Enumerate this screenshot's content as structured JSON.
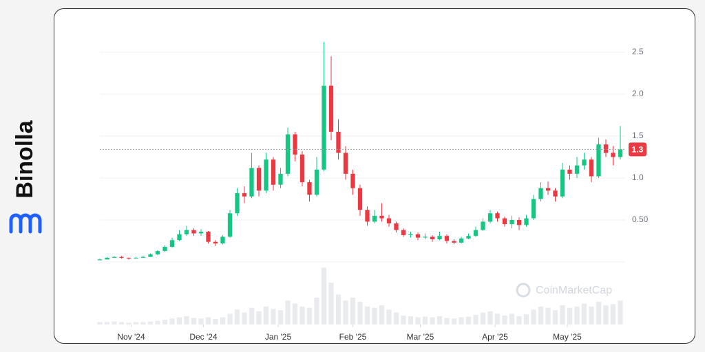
{
  "brand": "Binolla",
  "chart_data": {
    "type": "candlestick",
    "watermark": "CoinMarketCap",
    "up_color": "#16c784",
    "down_color": "#ea3943",
    "grid": true,
    "x": [
      0,
      3,
      6,
      9,
      12,
      15,
      18,
      21,
      24,
      27,
      30,
      33,
      36,
      39,
      42,
      45,
      48,
      51,
      54,
      57,
      60,
      63,
      66,
      69,
      72,
      75,
      78,
      81,
      84,
      87,
      90,
      93,
      96,
      99,
      102,
      105,
      108,
      111,
      114,
      117,
      120,
      123,
      126,
      129,
      132,
      135,
      138,
      141,
      144,
      147,
      150,
      153,
      156,
      159,
      162,
      165,
      168,
      171,
      174,
      177,
      180,
      183,
      186,
      189,
      192,
      195,
      198,
      201,
      204,
      207,
      210,
      213,
      216
    ],
    "open": [
      0.02,
      0.03,
      0.05,
      0.06,
      0.05,
      0.04,
      0.05,
      0.06,
      0.09,
      0.13,
      0.18,
      0.26,
      0.33,
      0.38,
      0.34,
      0.36,
      0.24,
      0.22,
      0.3,
      0.58,
      0.82,
      0.78,
      1.12,
      0.85,
      1.22,
      0.92,
      1.05,
      1.52,
      1.28,
      0.95,
      0.8,
      1.1,
      2.1,
      1.55,
      1.3,
      1.05,
      0.88,
      0.62,
      0.48,
      0.55,
      0.52,
      0.46,
      0.38,
      0.32,
      0.33,
      0.29,
      0.3,
      0.27,
      0.31,
      0.25,
      0.23,
      0.28,
      0.31,
      0.38,
      0.48,
      0.58,
      0.52,
      0.45,
      0.5,
      0.44,
      0.52,
      0.75,
      0.88,
      0.85,
      0.78,
      1.1,
      1.05,
      1.15,
      1.22,
      1.02,
      1.4,
      1.3,
      1.25
    ],
    "high": [
      0.04,
      0.06,
      0.07,
      0.07,
      0.05,
      0.06,
      0.07,
      0.1,
      0.14,
      0.2,
      0.29,
      0.38,
      0.43,
      0.4,
      0.39,
      0.37,
      0.26,
      0.32,
      0.62,
      0.88,
      0.9,
      1.3,
      1.15,
      1.3,
      1.25,
      1.12,
      1.6,
      1.55,
      1.32,
      0.98,
      1.25,
      2.62,
      2.45,
      1.7,
      1.38,
      1.1,
      0.92,
      0.66,
      0.62,
      0.7,
      0.56,
      0.48,
      0.4,
      0.36,
      0.35,
      0.34,
      0.32,
      0.36,
      0.33,
      0.27,
      0.3,
      0.34,
      0.42,
      0.52,
      0.62,
      0.6,
      0.54,
      0.55,
      0.53,
      0.56,
      0.8,
      0.95,
      0.96,
      0.88,
      1.18,
      1.15,
      1.25,
      1.3,
      1.25,
      1.48,
      1.46,
      1.38,
      1.62
    ],
    "low": [
      0.02,
      0.03,
      0.05,
      0.04,
      0.03,
      0.04,
      0.05,
      0.06,
      0.08,
      0.12,
      0.17,
      0.25,
      0.31,
      0.31,
      0.31,
      0.22,
      0.19,
      0.21,
      0.29,
      0.55,
      0.7,
      0.76,
      0.78,
      0.82,
      0.85,
      0.88,
      1.02,
      1.2,
      0.9,
      0.72,
      0.78,
      1.08,
      1.45,
      1.22,
      0.98,
      0.8,
      0.55,
      0.43,
      0.46,
      0.48,
      0.42,
      0.35,
      0.3,
      0.29,
      0.26,
      0.27,
      0.24,
      0.26,
      0.22,
      0.21,
      0.22,
      0.27,
      0.3,
      0.37,
      0.46,
      0.48,
      0.42,
      0.4,
      0.38,
      0.42,
      0.5,
      0.72,
      0.8,
      0.72,
      0.76,
      0.98,
      1.0,
      1.1,
      0.95,
      1.0,
      1.25,
      1.15,
      1.22
    ],
    "close": [
      0.03,
      0.05,
      0.06,
      0.05,
      0.04,
      0.05,
      0.06,
      0.09,
      0.13,
      0.18,
      0.26,
      0.33,
      0.38,
      0.34,
      0.36,
      0.24,
      0.22,
      0.3,
      0.58,
      0.82,
      0.78,
      1.12,
      0.85,
      1.22,
      0.92,
      1.05,
      1.52,
      1.28,
      0.95,
      0.8,
      1.1,
      2.1,
      1.55,
      1.3,
      1.05,
      0.88,
      0.62,
      0.48,
      0.55,
      0.52,
      0.46,
      0.38,
      0.32,
      0.33,
      0.29,
      0.3,
      0.27,
      0.31,
      0.25,
      0.23,
      0.28,
      0.31,
      0.38,
      0.48,
      0.58,
      0.52,
      0.45,
      0.5,
      0.44,
      0.52,
      0.75,
      0.88,
      0.85,
      0.78,
      1.1,
      1.05,
      1.15,
      1.22,
      1.02,
      1.4,
      1.3,
      1.25,
      1.34
    ],
    "volume": [
      4,
      4,
      5,
      4,
      3,
      4,
      4,
      5,
      6,
      8,
      10,
      12,
      14,
      11,
      10,
      12,
      9,
      12,
      18,
      25,
      20,
      28,
      22,
      30,
      26,
      24,
      40,
      35,
      30,
      28,
      45,
      95,
      70,
      50,
      40,
      45,
      38,
      30,
      28,
      32,
      25,
      20,
      15,
      14,
      12,
      13,
      12,
      14,
      11,
      10,
      12,
      13,
      16,
      20,
      22,
      18,
      15,
      18,
      14,
      17,
      25,
      30,
      28,
      24,
      32,
      28,
      30,
      35,
      30,
      38,
      32,
      34,
      40
    ],
    "volume_lim": [
      0,
      100
    ],
    "xlim": [
      0,
      218
    ],
    "xticks": [
      {
        "value": 13,
        "label": "Nov '24"
      },
      {
        "value": 43,
        "label": "Dec '24"
      },
      {
        "value": 74,
        "label": "Jan '25"
      },
      {
        "value": 105,
        "label": "Feb '25"
      },
      {
        "value": 133,
        "label": "Mar '25"
      },
      {
        "value": 164,
        "label": "Apr '25"
      },
      {
        "value": 194,
        "label": "May '25"
      }
    ],
    "ylim": [
      0,
      2.9
    ],
    "yticks": [
      {
        "value": 0.5,
        "label": "0.50"
      },
      {
        "value": 1,
        "label": "1.0"
      },
      {
        "value": 1.5,
        "label": "1.5"
      },
      {
        "value": 2,
        "label": "2.0"
      },
      {
        "value": 2.5,
        "label": "2.5"
      }
    ],
    "price_label": {
      "value": 1.34,
      "label": "1.3"
    }
  }
}
